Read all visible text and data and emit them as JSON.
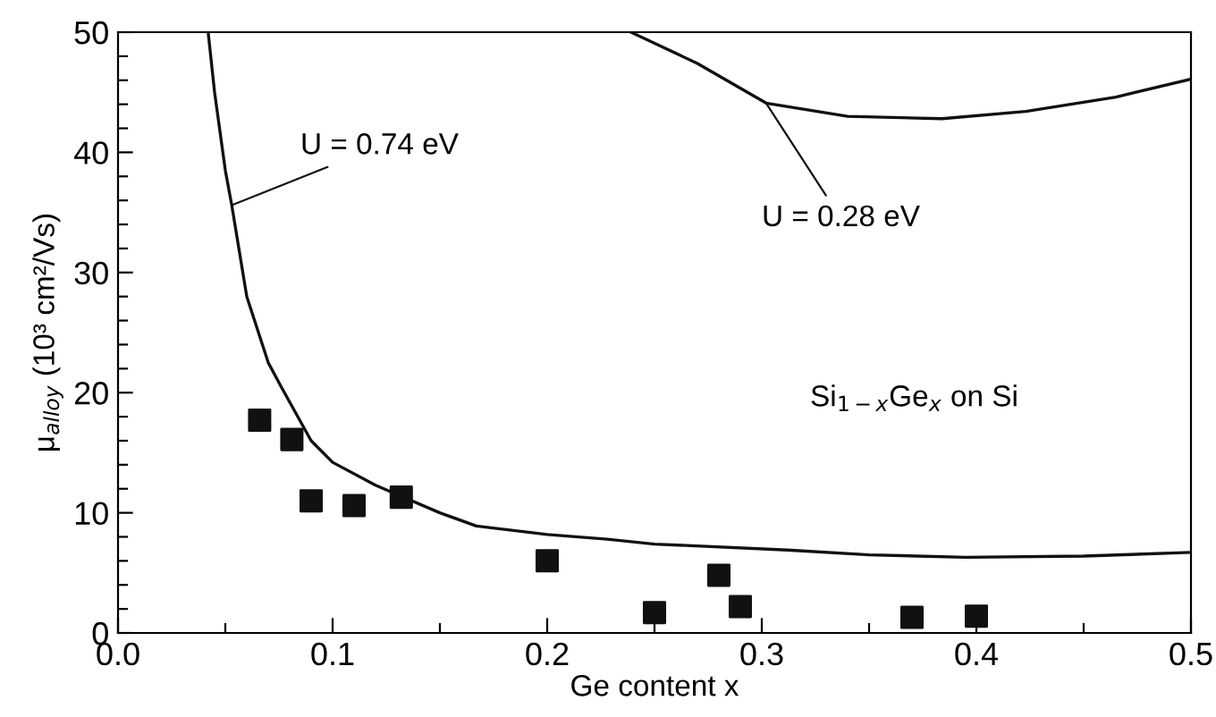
{
  "chart_data": {
    "type": "scatter",
    "xlabel": "Ge content x",
    "ylabel": "μ$_{alloy}$ (10³ cm²/Vs)",
    "xlim": [
      0,
      0.5
    ],
    "ylim": [
      0,
      50
    ],
    "xticks": [
      {
        "value": 0,
        "label": "0.0"
      },
      {
        "value": 0.05,
        "label": null
      },
      0.1,
      {
        "value": 0.15,
        "label": null
      },
      0.2,
      {
        "value": 0.25,
        "label": null
      },
      0.3,
      {
        "value": 0.35,
        "label": null
      },
      0.4,
      {
        "value": 0.45,
        "label": null
      },
      0.5
    ],
    "yticks": [
      0,
      {
        "value": 2,
        "label": null
      },
      {
        "value": 4,
        "label": null
      },
      {
        "value": 6,
        "label": null
      },
      {
        "value": 8,
        "label": null
      },
      10,
      {
        "value": 12,
        "label": null
      },
      {
        "value": 14,
        "label": null
      },
      {
        "value": 16,
        "label": null
      },
      {
        "value": 18,
        "label": null
      },
      20,
      {
        "value": 22,
        "label": null
      },
      {
        "value": 24,
        "label": null
      },
      {
        "value": 26,
        "label": null
      },
      {
        "value": 28,
        "label": null
      },
      30,
      {
        "value": 32,
        "label": null
      },
      {
        "value": 34,
        "label": null
      },
      {
        "value": 36,
        "label": null
      },
      {
        "value": 38,
        "label": null
      },
      40,
      {
        "value": 42,
        "label": null
      },
      {
        "value": 44,
        "label": null
      },
      {
        "value": 46,
        "label": null
      },
      {
        "value": 48,
        "label": null
      },
      50
    ],
    "grid": false,
    "legend": false,
    "series": [
      {
        "marker": "square",
        "color": "#111111",
        "x": [
          0.066,
          0.081,
          0.09,
          0.11,
          0.132,
          0.2,
          0.25,
          0.28,
          0.29,
          0.37,
          0.4
        ],
        "values": [
          17.7,
          16.1,
          11.0,
          10.6,
          11.3,
          6.0,
          1.7,
          4.8,
          2.2,
          1.3,
          1.4
        ]
      },
      {
        "type": "line",
        "marker": "none",
        "line_style": "solid",
        "color": "#111111",
        "x": [
          0.042,
          0.045,
          0.05,
          0.053,
          0.06,
          0.07,
          0.076,
          0.09,
          0.1,
          0.12,
          0.15,
          0.167,
          0.2,
          0.228,
          0.25,
          0.312,
          0.35,
          0.395,
          0.45,
          0.5
        ],
        "values": [
          50,
          45,
          38.5,
          35.6,
          28,
          22.5,
          20.5,
          16,
          14.2,
          12.3,
          10,
          8.9,
          8.2,
          7.8,
          7.4,
          6.9,
          6.5,
          6.3,
          6.4,
          6.7
        ]
      },
      {
        "type": "line",
        "marker": "none",
        "line_style": "solid",
        "color": "#111111",
        "x": [
          0.239,
          0.27,
          0.302,
          0.34,
          0.384,
          0.423,
          0.465,
          0.5
        ],
        "values": [
          50,
          47.4,
          44.1,
          43.0,
          42.8,
          43.4,
          44.6,
          46.1
        ]
      }
    ],
    "annotations": [
      {
        "text": "U = 0.74 eV",
        "x": 0.053,
        "y": 35.6
      },
      {
        "text": "U = 0.28 eV",
        "x": 0.302,
        "y": 44.1
      },
      "Si$_{1−x}$Ge$_{x}$ on Si"
    ]
  }
}
